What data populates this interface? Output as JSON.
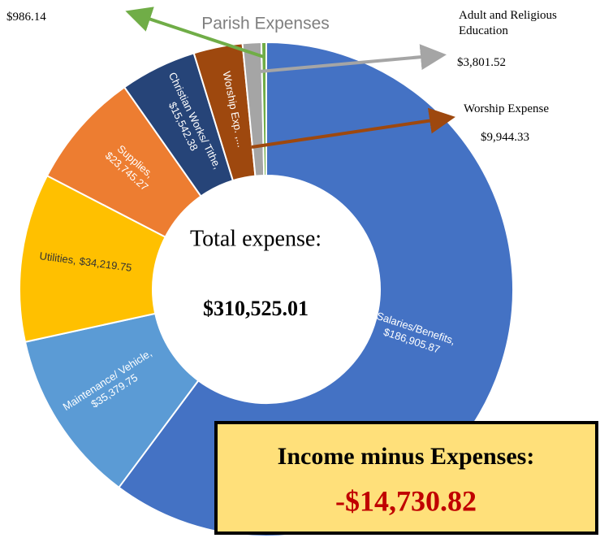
{
  "chart_data": {
    "type": "donut",
    "title": "Parish Expenses",
    "categories": [
      "Salaries/Benefits,",
      "Maintenance/ Vehicle,",
      "Utilities,",
      "Supplies,",
      "Christian Works/ Tithe,",
      "Worship Exp. ,...",
      "Adult and Religious Education",
      null
    ],
    "values": [
      186905.87,
      35379.75,
      34219.75,
      23745.27,
      15542.38,
      9944.33,
      3801.52,
      986.14
    ],
    "value_labels": [
      "$186,905.87",
      "$35,379.75",
      "$34,219.75",
      "$23,745.27",
      "$15,542.38",
      "$9,944.33",
      "$3,801.52",
      "$986.14"
    ],
    "colors": [
      "#4472c4",
      "#5b9bd5",
      "#ffc000",
      "#ed7d31",
      "#264478",
      "#9e480e",
      "#a5a5a5",
      "#70ad47"
    ],
    "worship_callout": "Worship Expense",
    "center_label": "Total expense:",
    "total_label": "$310,525.01",
    "summary_box": {
      "title": "Income minus Expenses:",
      "value": "-$14,730.82"
    }
  }
}
